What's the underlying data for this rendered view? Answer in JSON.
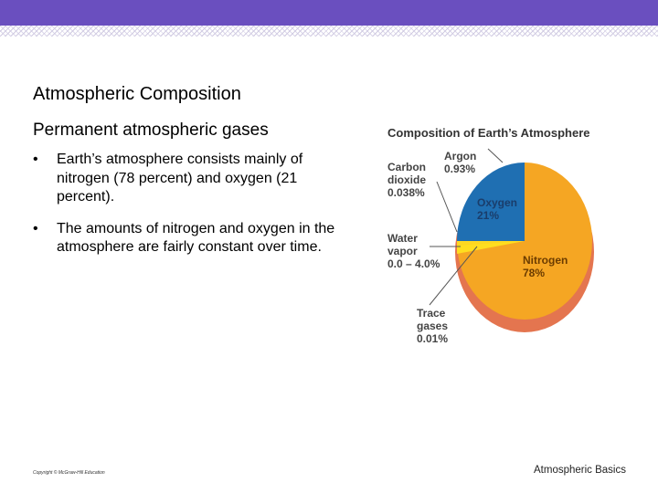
{
  "theme": {
    "accent": "#6a4fbf",
    "nitrogen": "#f5a623",
    "nitrogen_shadow": "#e4754f",
    "oxygen": "#1f6fb2",
    "water": "#ffe020",
    "minor": "#e05a5a"
  },
  "slide": {
    "title": "Atmospheric Composition",
    "subtitle": "Permanent atmospheric gases",
    "bullet_marker": "•",
    "bullets": [
      "Earth’s atmosphere consists mainly of nitrogen (78 percent) and oxygen (21 percent).",
      "The amounts of nitrogen and oxygen in the atmosphere are fairly constant over time."
    ],
    "footer_copyright": "Copyright © McGraw-Hill Education",
    "footer_right": "Atmospheric Basics"
  },
  "chart_data": {
    "type": "pie",
    "title": "Composition of Earth’s Atmosphere",
    "slices": [
      {
        "name": "Nitrogen",
        "value": 78,
        "label_line1": "Nitrogen",
        "label_line2": "78%",
        "color": "#f5a623"
      },
      {
        "name": "Oxygen",
        "value": 21,
        "label_line1": "Oxygen",
        "label_line2": "21%",
        "color": "#1f6fb2"
      },
      {
        "name": "Argon",
        "value": 0.93,
        "label_lines": [
          "Argon",
          "0.93%"
        ],
        "color": "#e05a5a"
      },
      {
        "name": "Carbon dioxide",
        "value": 0.038,
        "label_lines": [
          "Carbon",
          "dioxide",
          "0.038%"
        ],
        "color": "#c03030"
      },
      {
        "name": "Water vapor",
        "value_range": [
          0.0,
          4.0
        ],
        "label_lines": [
          "Water",
          "vapor",
          "0.0 – 4.0%"
        ],
        "color": "#ffe020"
      },
      {
        "name": "Trace gases",
        "value": 0.01,
        "label_lines": [
          "Trace",
          "gases",
          "0.01%"
        ],
        "color": "#888888"
      }
    ]
  }
}
